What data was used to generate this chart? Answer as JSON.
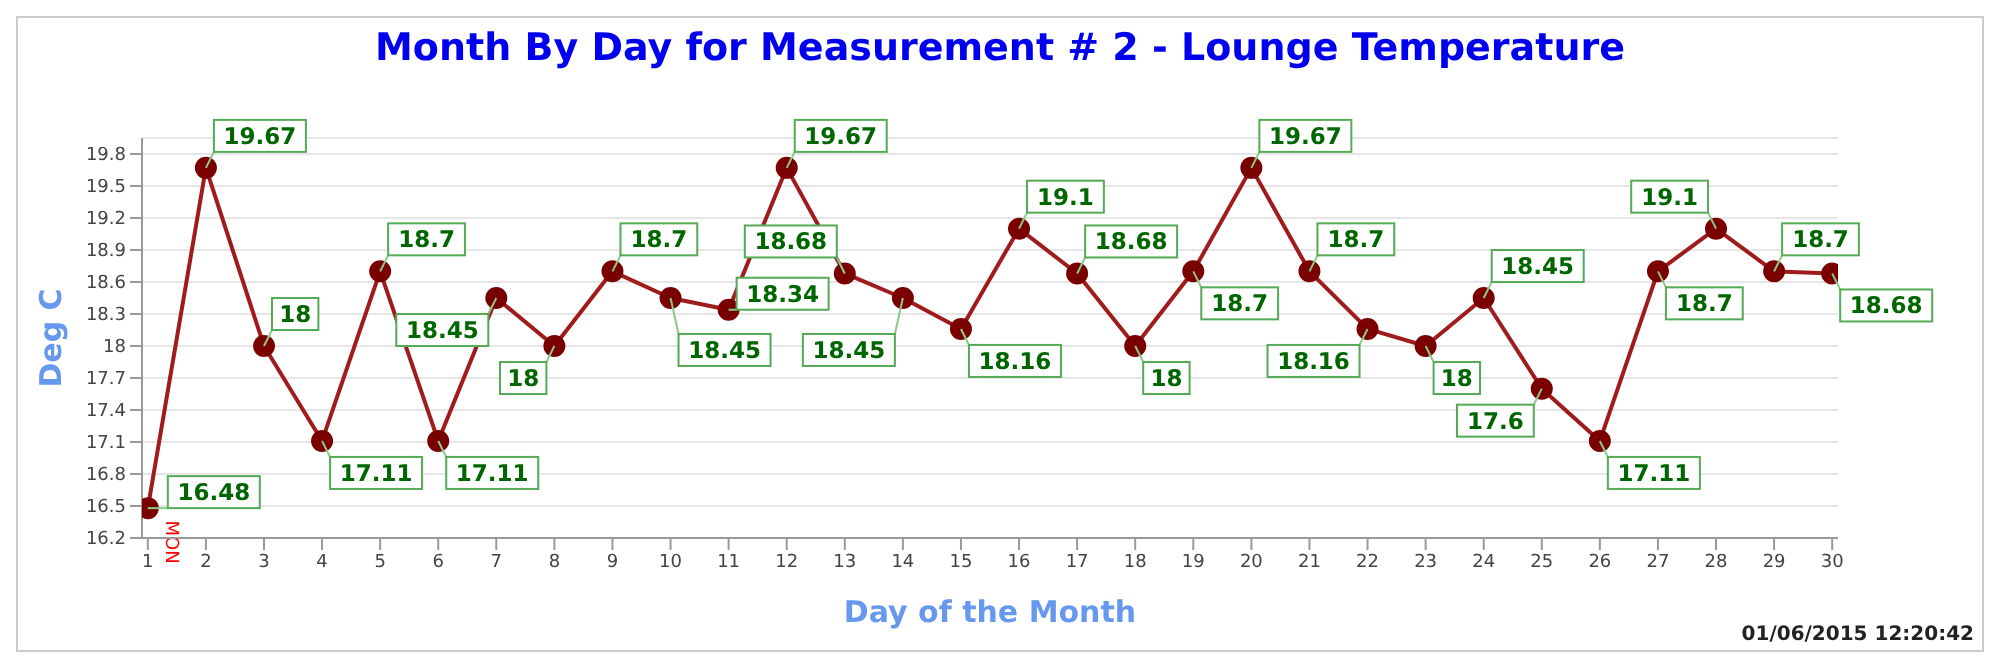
{
  "chart_data": {
    "type": "line",
    "title": "Month By Day for Measurement # 2 - Lounge Temperature",
    "xlabel": "Day of the Month",
    "ylabel": "Deg C",
    "x": [
      1,
      2,
      3,
      4,
      5,
      6,
      7,
      8,
      9,
      10,
      11,
      12,
      13,
      14,
      15,
      16,
      17,
      18,
      19,
      20,
      21,
      22,
      23,
      24,
      25,
      26,
      27,
      28,
      29,
      30
    ],
    "series": [
      {
        "color": "#a01c1c",
        "values": [
          16.48,
          19.67,
          18,
          17.11,
          18.7,
          17.11,
          18.45,
          18,
          18.7,
          18.45,
          18.34,
          19.67,
          18.68,
          18.45,
          18.16,
          19.1,
          18.68,
          18,
          18.7,
          19.67,
          18.7,
          18.16,
          18,
          18.45,
          17.6,
          17.11,
          18.7,
          19.1,
          18.7,
          18.68
        ]
      }
    ],
    "xlim": [
      0.9,
      30.1
    ],
    "xticks": [
      1,
      2,
      3,
      4,
      5,
      6,
      7,
      8,
      9,
      10,
      11,
      12,
      13,
      14,
      15,
      16,
      17,
      18,
      19,
      20,
      21,
      22,
      23,
      24,
      25,
      26,
      27,
      28,
      29,
      30
    ],
    "ylim": [
      16.2,
      19.95
    ],
    "yticks": [
      16.2,
      16.5,
      16.8,
      17.1,
      17.4,
      17.7,
      18,
      18.3,
      18.6,
      18.9,
      19.2,
      19.5,
      19.8
    ],
    "grid": "y",
    "marker": "circle",
    "line_style": "solid",
    "data_labels": true,
    "annotations": [
      {
        "text": "MON",
        "x": 1,
        "y": 16.48
      },
      "01/06/2015 12:20:42"
    ]
  }
}
